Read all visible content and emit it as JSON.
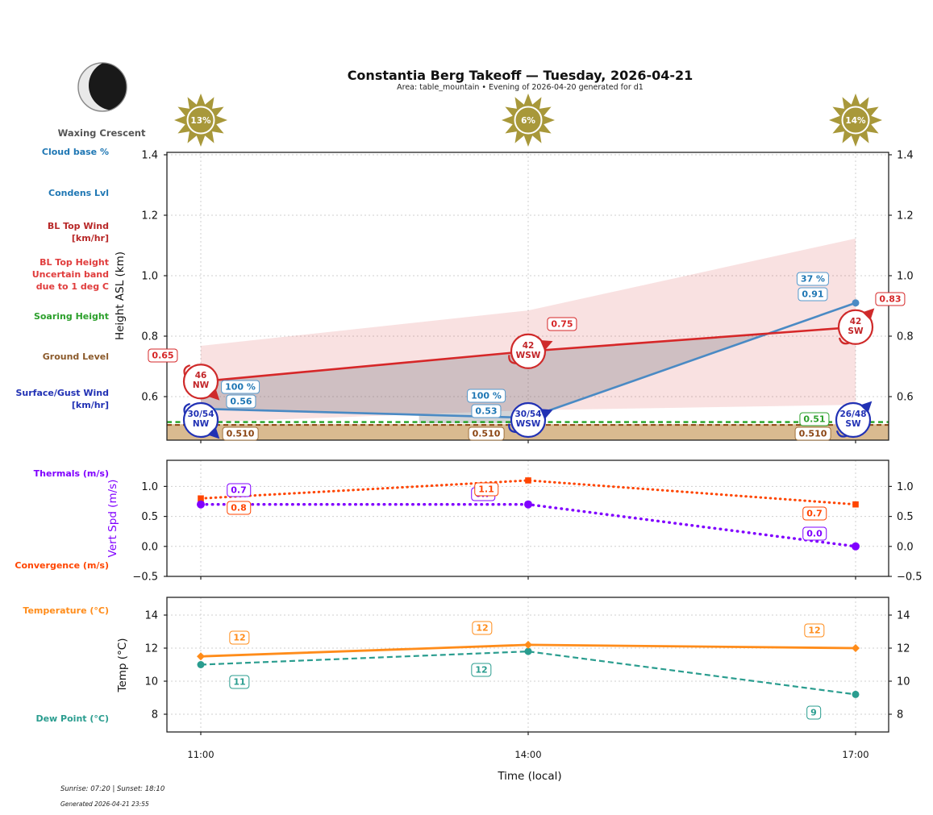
{
  "header": {
    "title": "Constantia Berg Takeoff — Tuesday, 2026-04-21",
    "subtitle": "Area: table_mountain • Evening of 2026-04-20 generated for d1"
  },
  "moon": {
    "phase": "Waxing Crescent"
  },
  "suns": [
    {
      "pct": "13%"
    },
    {
      "pct": "6%"
    },
    {
      "pct": "14%"
    }
  ],
  "left_labels": {
    "cloud_base": [
      "Cloud base %"
    ],
    "condens": [
      "Condens Lvl"
    ],
    "bl_top_wind": [
      "BL Top Wind",
      "[km/hr]"
    ],
    "bl_top_height": [
      "BL Top Height",
      "Uncertain band",
      "due to 1 deg C"
    ],
    "soaring": [
      "Soaring Height"
    ],
    "ground": [
      "Ground Level"
    ],
    "surface_wind": [
      "Surface/Gust Wind",
      "[km/hr]"
    ],
    "thermals": [
      "Thermals (m/s)"
    ],
    "convergence": [
      "Convergence (m/s)"
    ],
    "temperature": [
      "Temperature (°C)"
    ],
    "dew_point": [
      "Dew Point (°C)"
    ]
  },
  "x_axis": {
    "label": "Time (local)",
    "ticks": [
      "11:00",
      "14:00",
      "17:00"
    ],
    "hours": [
      11,
      14,
      17
    ]
  },
  "footer": {
    "sun_times": "Sunrise: 07:20 | Sunset: 18:10",
    "generated": "Generated 2026-04-21 23:55"
  },
  "colors": {
    "bl_top": "#d62728",
    "condens_line": "#4a8ac4",
    "cloud_base": "#1f77b4",
    "soaring": "#22a022",
    "ground_line": "#8b4513",
    "ground_fill": "#d9ba90",
    "surface_wind": "#2131b4",
    "thermals": "#8000ff",
    "convergence": "#ff4500",
    "temperature": "#ff8c1a",
    "dew_point": "#2a9d8f",
    "sun": "#a8983a",
    "band_pink": "rgba(214,39,40,0.14)",
    "band_gray": "rgba(110,112,122,0.30)",
    "grid": "#cfcfcf",
    "frame": "#222222"
  },
  "chart_data": [
    {
      "type": "line",
      "name": "height-profile",
      "ylabel": "Height ASL (km)",
      "yticks": [
        1.4,
        1.2,
        1.0,
        0.8,
        0.6
      ],
      "ytick_labels": [
        "1.4",
        "1.2",
        "1.0",
        "0.8",
        "0.6"
      ],
      "x_hours": [
        11,
        14,
        17
      ],
      "series": [
        {
          "name": "bl_top_height",
          "style": "solid",
          "values": [
            0.65,
            0.75,
            0.83
          ],
          "point_labels": [
            "0.65",
            "0.75",
            "0.83"
          ]
        },
        {
          "name": "condensation_level",
          "style": "solid",
          "values": [
            0.56,
            0.53,
            0.91
          ],
          "point_labels": [
            "0.56",
            "0.53",
            "0.91"
          ]
        },
        {
          "name": "soaring_height",
          "style": "dashed",
          "values": [
            0.51,
            0.51,
            0.51
          ],
          "point_labels": [
            "0.51"
          ]
        },
        {
          "name": "ground_level",
          "style": "dashed",
          "values": [
            0.51,
            0.51,
            0.51
          ],
          "point_labels": [
            "0.510",
            "0.510",
            "0.510"
          ]
        }
      ],
      "cloud_base_pct": [
        "100 %",
        "100 %",
        "37 %"
      ],
      "bl_top_wind": [
        {
          "speed": "46",
          "dir": "NW"
        },
        {
          "speed": "42",
          "dir": "WSW"
        },
        {
          "speed": "42",
          "dir": "SW"
        }
      ],
      "surface_gust_wind": [
        {
          "speed": "30/54",
          "dir": "NW"
        },
        {
          "speed": "30/54",
          "dir": "WSW"
        },
        {
          "speed": "26/48",
          "dir": "SW"
        }
      ],
      "uncertainty_band": {
        "top": [
          0.768,
          0.885,
          1.123
        ],
        "bottom": [
          0.515,
          0.555,
          0.573
        ]
      },
      "cloud_band": {
        "polygon": [
          [
            11,
            0.65
          ],
          [
            14,
            0.75
          ],
          [
            16.2,
            0.809
          ],
          [
            14,
            0.53
          ],
          [
            11,
            0.56
          ]
        ],
        "wedge": [
          [
            13.0,
            0.537
          ],
          [
            14,
            0.53
          ],
          [
            14,
            0.512
          ],
          [
            13.0,
            0.512
          ]
        ]
      }
    },
    {
      "type": "line",
      "name": "vertical-speed",
      "ylabel": "Vert Spd (m/s)",
      "yticks": [
        1.0,
        0.5,
        0.0,
        -0.5
      ],
      "ytick_labels": [
        "1.0",
        "0.5",
        "0.0",
        "−0.5"
      ],
      "x_hours": [
        11,
        14,
        17
      ],
      "series": [
        {
          "name": "thermals",
          "style": "dotted",
          "marker": "circle",
          "values": [
            0.7,
            0.7,
            0.0
          ],
          "point_labels": [
            "0.7",
            "0.7",
            "0.0"
          ]
        },
        {
          "name": "convergence",
          "style": "dotted",
          "marker": "square",
          "values": [
            0.8,
            1.1,
            0.7
          ],
          "point_labels": [
            "0.8",
            "1.1",
            "0.7"
          ]
        }
      ]
    },
    {
      "type": "line",
      "name": "temperature-dewpoint",
      "ylabel": "Temp (°C)",
      "yticks": [
        14,
        12,
        10,
        8
      ],
      "ytick_labels": [
        "14",
        "12",
        "10",
        "8"
      ],
      "x_hours": [
        11,
        14,
        17
      ],
      "series": [
        {
          "name": "temperature",
          "style": "solid",
          "marker": "diamond",
          "values": [
            11.5,
            12.2,
            12.0
          ],
          "point_labels": [
            "12",
            "12",
            "12"
          ]
        },
        {
          "name": "dew_point",
          "style": "dashed",
          "marker": "circle",
          "values": [
            11.0,
            11.8,
            9.2
          ],
          "point_labels": [
            "11",
            "12",
            "9"
          ]
        }
      ]
    }
  ]
}
